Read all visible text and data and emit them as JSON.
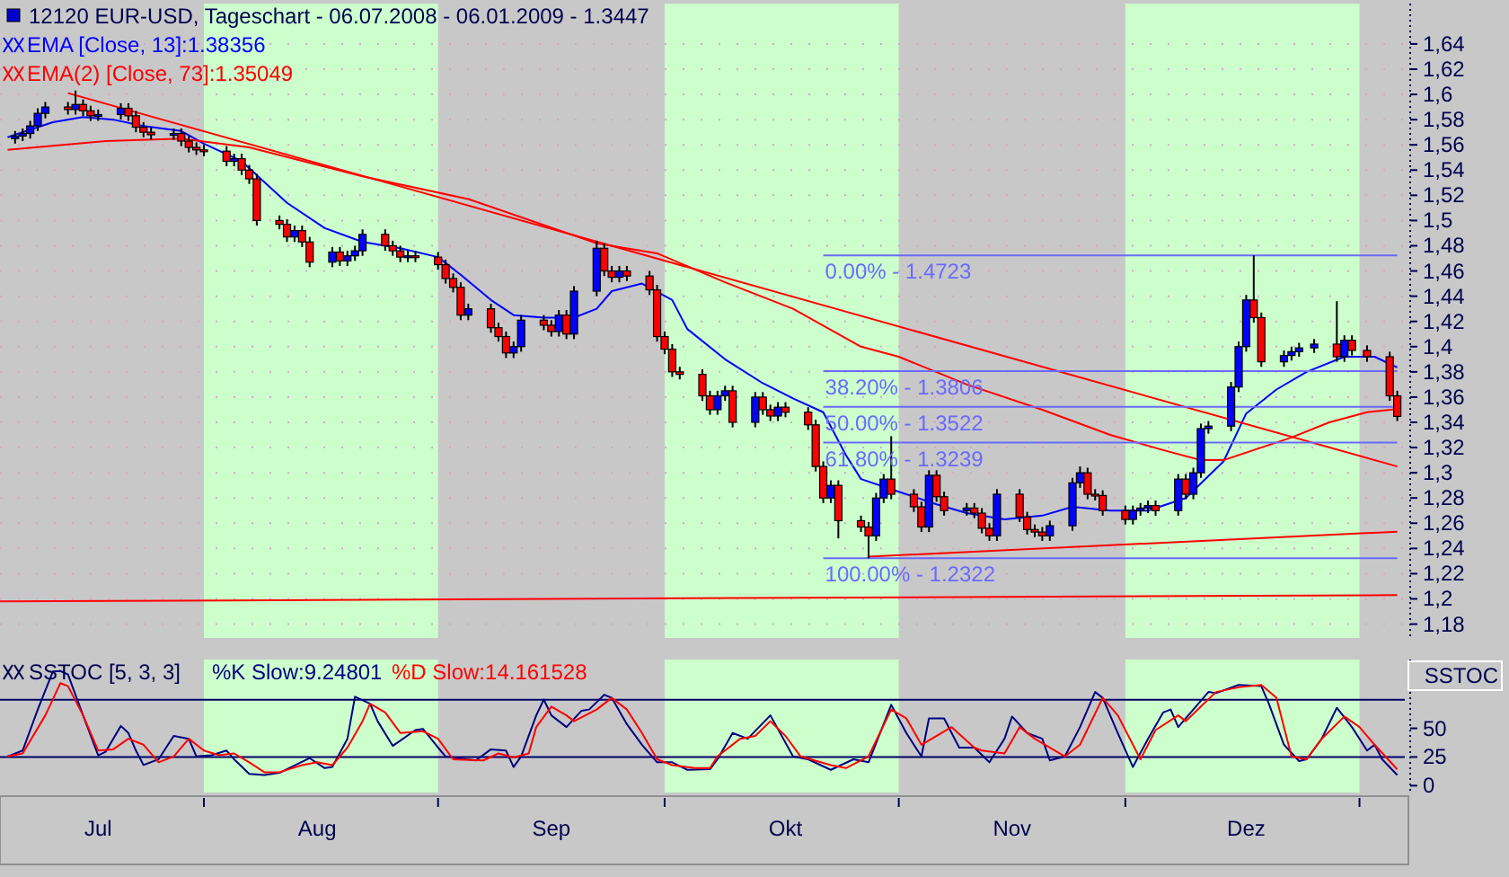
{
  "chart_data": [
    {
      "type": "candlestick",
      "title": "12120 EUR-USD, Tageschart - 06.07.2008 - 06.01.2009 - 1.3447",
      "x": [
        "2008-07-07",
        "2008-07-08",
        "2008-07-09",
        "2008-07-10",
        "2008-07-11",
        "2008-07-14",
        "2008-07-15",
        "2008-07-16",
        "2008-07-17",
        "2008-07-18",
        "2008-07-21",
        "2008-07-22",
        "2008-07-23",
        "2008-07-24",
        "2008-07-25",
        "2008-07-28",
        "2008-07-29",
        "2008-07-30",
        "2008-07-31",
        "2008-08-01",
        "2008-08-04",
        "2008-08-05",
        "2008-08-06",
        "2008-08-07",
        "2008-08-08",
        "2008-08-11",
        "2008-08-12",
        "2008-08-13",
        "2008-08-14",
        "2008-08-15",
        "2008-08-18",
        "2008-08-19",
        "2008-08-20",
        "2008-08-21",
        "2008-08-22",
        "2008-08-25",
        "2008-08-26",
        "2008-08-27",
        "2008-08-28",
        "2008-08-29",
        "2008-09-01",
        "2008-09-02",
        "2008-09-03",
        "2008-09-04",
        "2008-09-05",
        "2008-09-08",
        "2008-09-09",
        "2008-09-10",
        "2008-09-11",
        "2008-09-12",
        "2008-09-15",
        "2008-09-16",
        "2008-09-17",
        "2008-09-18",
        "2008-09-19",
        "2008-09-22",
        "2008-09-23",
        "2008-09-24",
        "2008-09-25",
        "2008-09-26",
        "2008-09-29",
        "2008-09-30",
        "2008-10-01",
        "2008-10-02",
        "2008-10-03",
        "2008-10-06",
        "2008-10-07",
        "2008-10-08",
        "2008-10-09",
        "2008-10-10",
        "2008-10-13",
        "2008-10-14",
        "2008-10-15",
        "2008-10-16",
        "2008-10-17",
        "2008-10-20",
        "2008-10-21",
        "2008-10-22",
        "2008-10-23",
        "2008-10-24",
        "2008-10-27",
        "2008-10-28",
        "2008-10-29",
        "2008-10-30",
        "2008-10-31",
        "2008-11-03",
        "2008-11-04",
        "2008-11-05",
        "2008-11-06",
        "2008-11-07",
        "2008-11-10",
        "2008-11-11",
        "2008-11-12",
        "2008-11-13",
        "2008-11-14",
        "2008-11-17",
        "2008-11-18",
        "2008-11-19",
        "2008-11-20",
        "2008-11-21",
        "2008-11-24",
        "2008-11-25",
        "2008-11-26",
        "2008-11-27",
        "2008-11-28",
        "2008-12-01",
        "2008-12-02",
        "2008-12-03",
        "2008-12-04",
        "2008-12-05",
        "2008-12-08",
        "2008-12-09",
        "2008-12-10",
        "2008-12-11",
        "2008-12-12",
        "2008-12-15",
        "2008-12-16",
        "2008-12-17",
        "2008-12-18",
        "2008-12-19",
        "2008-12-22",
        "2008-12-23",
        "2008-12-24",
        "2008-12-26",
        "2008-12-29",
        "2008-12-30",
        "2008-12-31",
        "2009-01-02",
        "2009-01-05",
        "2009-01-06"
      ],
      "ohlc": [
        [
          1.565,
          1.571,
          1.561,
          1.567
        ],
        [
          1.567,
          1.573,
          1.563,
          1.569
        ],
        [
          1.569,
          1.579,
          1.565,
          1.575
        ],
        [
          1.575,
          1.589,
          1.571,
          1.585
        ],
        [
          1.585,
          1.594,
          1.581,
          1.59
        ],
        [
          1.59,
          1.594,
          1.584,
          1.588
        ],
        [
          1.588,
          1.603,
          1.584,
          1.592
        ],
        [
          1.592,
          1.596,
          1.583,
          1.587
        ],
        [
          1.587,
          1.591,
          1.579,
          1.583
        ],
        [
          1.583,
          1.588,
          1.579,
          1.584
        ],
        [
          1.584,
          1.593,
          1.58,
          1.589
        ],
        [
          1.589,
          1.593,
          1.579,
          1.583
        ],
        [
          1.583,
          1.587,
          1.57,
          1.574
        ],
        [
          1.574,
          1.578,
          1.566,
          1.57
        ],
        [
          1.57,
          1.574,
          1.564,
          1.568
        ],
        [
          1.568,
          1.573,
          1.564,
          1.569
        ],
        [
          1.569,
          1.573,
          1.559,
          1.563
        ],
        [
          1.563,
          1.567,
          1.554,
          1.558
        ],
        [
          1.558,
          1.562,
          1.552,
          1.556
        ],
        [
          1.556,
          1.56,
          1.551,
          1.555
        ],
        [
          1.555,
          1.559,
          1.543,
          1.547
        ],
        [
          1.547,
          1.553,
          1.543,
          1.549
        ],
        [
          1.549,
          1.553,
          1.536,
          1.54
        ],
        [
          1.54,
          1.544,
          1.529,
          1.533
        ],
        [
          1.533,
          1.537,
          1.496,
          1.5
        ],
        [
          1.5,
          1.504,
          1.493,
          1.497
        ],
        [
          1.497,
          1.501,
          1.483,
          1.487
        ],
        [
          1.487,
          1.496,
          1.483,
          1.492
        ],
        [
          1.492,
          1.496,
          1.479,
          1.483
        ],
        [
          1.483,
          1.487,
          1.463,
          1.467
        ],
        [
          1.467,
          1.479,
          1.463,
          1.475
        ],
        [
          1.475,
          1.479,
          1.464,
          1.468
        ],
        [
          1.468,
          1.476,
          1.464,
          1.472
        ],
        [
          1.472,
          1.48,
          1.468,
          1.476
        ],
        [
          1.476,
          1.493,
          1.472,
          1.489
        ],
        [
          1.489,
          1.493,
          1.476,
          1.48
        ],
        [
          1.48,
          1.484,
          1.472,
          1.476
        ],
        [
          1.476,
          1.48,
          1.467,
          1.471
        ],
        [
          1.471,
          1.476,
          1.467,
          1.472
        ],
        [
          1.472,
          1.476,
          1.467,
          1.471
        ],
        [
          1.471,
          1.475,
          1.461,
          1.465
        ],
        [
          1.465,
          1.469,
          1.45,
          1.454
        ],
        [
          1.454,
          1.458,
          1.443,
          1.447
        ],
        [
          1.447,
          1.451,
          1.421,
          1.425
        ],
        [
          1.425,
          1.434,
          1.421,
          1.43
        ],
        [
          1.43,
          1.434,
          1.411,
          1.415
        ],
        [
          1.415,
          1.419,
          1.404,
          1.408
        ],
        [
          1.408,
          1.412,
          1.391,
          1.395
        ],
        [
          1.395,
          1.404,
          1.391,
          1.4
        ],
        [
          1.4,
          1.425,
          1.396,
          1.421
        ],
        [
          1.421,
          1.425,
          1.413,
          1.417
        ],
        [
          1.417,
          1.421,
          1.408,
          1.412
        ],
        [
          1.412,
          1.429,
          1.408,
          1.425
        ],
        [
          1.425,
          1.429,
          1.406,
          1.41
        ],
        [
          1.41,
          1.448,
          1.406,
          1.444
        ],
        [
          1.444,
          1.484,
          1.44,
          1.478
        ],
        [
          1.478,
          1.482,
          1.456,
          1.46
        ],
        [
          1.46,
          1.464,
          1.451,
          1.455
        ],
        [
          1.455,
          1.464,
          1.451,
          1.46
        ],
        [
          1.46,
          1.464,
          1.452,
          1.456
        ],
        [
          1.456,
          1.46,
          1.441,
          1.445
        ],
        [
          1.445,
          1.449,
          1.404,
          1.408
        ],
        [
          1.408,
          1.412,
          1.394,
          1.398
        ],
        [
          1.398,
          1.402,
          1.376,
          1.38
        ],
        [
          1.38,
          1.384,
          1.374,
          1.378
        ],
        [
          1.378,
          1.382,
          1.357,
          1.361
        ],
        [
          1.361,
          1.365,
          1.346,
          1.35
        ],
        [
          1.35,
          1.365,
          1.346,
          1.361
        ],
        [
          1.361,
          1.369,
          1.357,
          1.365
        ],
        [
          1.365,
          1.369,
          1.336,
          1.34
        ],
        [
          1.34,
          1.364,
          1.336,
          1.36
        ],
        [
          1.36,
          1.364,
          1.346,
          1.35
        ],
        [
          1.35,
          1.354,
          1.341,
          1.345
        ],
        [
          1.345,
          1.356,
          1.341,
          1.352
        ],
        [
          1.352,
          1.356,
          1.344,
          1.348
        ],
        [
          1.348,
          1.352,
          1.334,
          1.338
        ],
        [
          1.338,
          1.342,
          1.301,
          1.305
        ],
        [
          1.305,
          1.309,
          1.276,
          1.28
        ],
        [
          1.28,
          1.294,
          1.276,
          1.29
        ],
        [
          1.29,
          1.294,
          1.248,
          1.262
        ],
        [
          1.262,
          1.266,
          1.253,
          1.257
        ],
        [
          1.257,
          1.261,
          1.2322,
          1.25
        ],
        [
          1.25,
          1.284,
          1.246,
          1.28
        ],
        [
          1.28,
          1.299,
          1.276,
          1.295
        ],
        [
          1.295,
          1.329,
          1.279,
          1.283
        ],
        [
          1.283,
          1.287,
          1.269,
          1.273
        ],
        [
          1.273,
          1.277,
          1.253,
          1.257
        ],
        [
          1.257,
          1.302,
          1.253,
          1.298
        ],
        [
          1.298,
          1.302,
          1.277,
          1.281
        ],
        [
          1.281,
          1.285,
          1.266,
          1.27
        ],
        [
          1.27,
          1.276,
          1.266,
          1.272
        ],
        [
          1.272,
          1.276,
          1.264,
          1.268
        ],
        [
          1.268,
          1.272,
          1.252,
          1.256
        ],
        [
          1.256,
          1.26,
          1.246,
          1.25
        ],
        [
          1.25,
          1.287,
          1.246,
          1.283
        ],
        [
          1.283,
          1.287,
          1.261,
          1.265
        ],
        [
          1.265,
          1.269,
          1.251,
          1.255
        ],
        [
          1.255,
          1.259,
          1.249,
          1.253
        ],
        [
          1.253,
          1.257,
          1.246,
          1.25
        ],
        [
          1.25,
          1.262,
          1.246,
          1.258
        ],
        [
          1.258,
          1.296,
          1.254,
          1.292
        ],
        [
          1.292,
          1.305,
          1.288,
          1.3
        ],
        [
          1.3,
          1.304,
          1.279,
          1.283
        ],
        [
          1.283,
          1.287,
          1.278,
          1.282
        ],
        [
          1.282,
          1.286,
          1.266,
          1.27
        ],
        [
          1.27,
          1.274,
          1.259,
          1.263
        ],
        [
          1.263,
          1.274,
          1.259,
          1.27
        ],
        [
          1.27,
          1.276,
          1.266,
          1.272
        ],
        [
          1.272,
          1.278,
          1.268,
          1.274
        ],
        [
          1.274,
          1.278,
          1.266,
          1.27
        ],
        [
          1.27,
          1.299,
          1.266,
          1.295
        ],
        [
          1.295,
          1.299,
          1.279,
          1.283
        ],
        [
          1.283,
          1.304,
          1.279,
          1.3
        ],
        [
          1.3,
          1.339,
          1.296,
          1.335
        ],
        [
          1.335,
          1.341,
          1.331,
          1.337
        ],
        [
          1.337,
          1.372,
          1.333,
          1.368
        ],
        [
          1.368,
          1.404,
          1.364,
          1.4
        ],
        [
          1.4,
          1.441,
          1.396,
          1.437
        ],
        [
          1.437,
          1.4723,
          1.419,
          1.423
        ],
        [
          1.423,
          1.427,
          1.384,
          1.388
        ],
        [
          1.388,
          1.397,
          1.384,
          1.393
        ],
        [
          1.393,
          1.4,
          1.389,
          1.396
        ],
        [
          1.396,
          1.403,
          1.392,
          1.399
        ],
        [
          1.399,
          1.406,
          1.395,
          1.402
        ],
        [
          1.402,
          1.436,
          1.388,
          1.392
        ],
        [
          1.392,
          1.409,
          1.388,
          1.405
        ],
        [
          1.405,
          1.409,
          1.393,
          1.397
        ],
        [
          1.397,
          1.401,
          1.388,
          1.392
        ],
        [
          1.392,
          1.396,
          1.357,
          1.361
        ],
        [
          1.361,
          1.365,
          1.341,
          1.3447
        ]
      ],
      "series": [
        {
          "type": "line",
          "name": "EMA [Close, 13]:1.38356",
          "color": "#0000ff",
          "x": [
            "2008-07-06",
            "2008-07-12",
            "2008-07-16",
            "2008-07-20",
            "2008-07-24",
            "2008-07-29",
            "2008-08-01",
            "2008-08-06",
            "2008-08-12",
            "2008-08-17",
            "2008-08-22",
            "2008-08-27",
            "2008-09-01",
            "2008-09-04",
            "2008-09-08",
            "2008-09-11",
            "2008-09-15",
            "2008-09-19",
            "2008-09-22",
            "2008-09-24",
            "2008-09-28",
            "2008-10-02",
            "2008-10-04",
            "2008-10-09",
            "2008-10-14",
            "2008-10-18",
            "2008-10-22",
            "2008-10-25",
            "2008-10-27",
            "2008-11-01",
            "2008-11-06",
            "2008-11-10",
            "2008-11-15",
            "2008-11-20",
            "2008-11-24",
            "2008-11-29",
            "2008-12-04",
            "2008-12-09",
            "2008-12-14",
            "2008-12-17",
            "2008-12-21",
            "2008-12-25",
            "2008-12-30",
            "2009-01-03",
            "2009-01-06"
          ],
          "values": [
            1.566,
            1.578,
            1.582,
            1.58,
            1.575,
            1.571,
            1.561,
            1.547,
            1.514,
            1.494,
            1.483,
            1.478,
            1.471,
            1.457,
            1.437,
            1.425,
            1.423,
            1.423,
            1.43,
            1.444,
            1.45,
            1.437,
            1.414,
            1.39,
            1.371,
            1.359,
            1.348,
            1.314,
            1.295,
            1.285,
            1.275,
            1.268,
            1.263,
            1.266,
            1.273,
            1.27,
            1.27,
            1.28,
            1.309,
            1.347,
            1.366,
            1.38,
            1.392,
            1.392,
            1.3836
          ]
        },
        {
          "type": "line",
          "name": "EMA(2) [Close, 73]:1.35049",
          "color": "#ff0000",
          "x": [
            "2008-07-06",
            "2008-07-19",
            "2008-07-29",
            "2008-08-07",
            "2008-08-22",
            "2008-09-05",
            "2008-09-22",
            "2008-09-30",
            "2008-10-09",
            "2008-10-18",
            "2008-10-27",
            "2008-11-01",
            "2008-11-10",
            "2008-11-20",
            "2008-11-29",
            "2008-12-06",
            "2008-12-11",
            "2008-12-14",
            "2008-12-18",
            "2008-12-23",
            "2008-12-28",
            "2009-01-02",
            "2009-01-06"
          ],
          "values": [
            1.556,
            1.563,
            1.565,
            1.558,
            1.535,
            1.517,
            1.482,
            1.474,
            1.451,
            1.43,
            1.4,
            1.392,
            1.37,
            1.35,
            1.33,
            1.318,
            1.31,
            1.31,
            1.318,
            1.328,
            1.34,
            1.348,
            1.3505
          ]
        },
        {
          "type": "line",
          "color": "#ff0000",
          "x": [
            "2008-07-14",
            "2009-01-06"
          ],
          "values": [
            1.601,
            1.305
          ]
        },
        {
          "type": "line",
          "color": "#ff0000",
          "x": [
            "2008-10-28",
            "2009-01-06"
          ],
          "values": [
            1.2335,
            1.2533
          ]
        },
        {
          "type": "line",
          "color": "#ff0000",
          "x": [
            "2008-07-05",
            "2009-01-06"
          ],
          "values": [
            1.198,
            1.203
          ]
        },
        {
          "type": "line",
          "name": "0.00% - 1.4723",
          "color": "#6a6aff",
          "x": [
            "2008-10-22",
            "2009-01-06"
          ],
          "values": [
            1.4723,
            1.4723
          ]
        },
        {
          "type": "line",
          "name": "38.20% - 1.3806",
          "color": "#6a6aff",
          "x": [
            "2008-10-22",
            "2009-01-06"
          ],
          "values": [
            1.3806,
            1.3806
          ]
        },
        {
          "type": "line",
          "name": "50.00% - 1.3522",
          "color": "#6a6aff",
          "x": [
            "2008-10-22",
            "2009-01-06"
          ],
          "values": [
            1.3522,
            1.3522
          ]
        },
        {
          "type": "line",
          "name": "61.80% - 1.3239",
          "color": "#6a6aff",
          "x": [
            "2008-10-22",
            "2009-01-06"
          ],
          "values": [
            1.3239,
            1.3239
          ]
        },
        {
          "type": "line",
          "name": "100.00% - 1.2322",
          "color": "#6a6aff",
          "x": [
            "2008-10-22",
            "2009-01-06"
          ],
          "values": [
            1.2322,
            1.2322
          ]
        }
      ],
      "xlim": [
        "2008-07-05",
        "2009-01-07"
      ],
      "ylim": [
        1.169,
        1.672
      ],
      "yticks": [
        {
          "value": 1.18,
          "label": "1,18"
        },
        {
          "value": 1.2,
          "label": "1,2"
        },
        {
          "value": 1.22,
          "label": "1,22"
        },
        {
          "value": 1.24,
          "label": "1,24"
        },
        {
          "value": 1.26,
          "label": "1,26"
        },
        {
          "value": 1.28,
          "label": "1,28"
        },
        {
          "value": 1.3,
          "label": "1,3"
        },
        {
          "value": 1.32,
          "label": "1,32"
        },
        {
          "value": 1.34,
          "label": "1,34"
        },
        {
          "value": 1.36,
          "label": "1,36"
        },
        {
          "value": 1.38,
          "label": "1,38"
        },
        {
          "value": 1.4,
          "label": "1,4"
        },
        {
          "value": 1.42,
          "label": "1,42"
        },
        {
          "value": 1.44,
          "label": "1,44"
        },
        {
          "value": 1.46,
          "label": "1,46"
        },
        {
          "value": 1.48,
          "label": "1,48"
        },
        {
          "value": 1.5,
          "label": "1,5"
        },
        {
          "value": 1.52,
          "label": "1,52"
        },
        {
          "value": 1.54,
          "label": "1,54"
        },
        {
          "value": 1.56,
          "label": "1,56"
        },
        {
          "value": 1.58,
          "label": "1,58"
        },
        {
          "value": 1.6,
          "label": "1,6"
        },
        {
          "value": 1.62,
          "label": "1,62"
        },
        {
          "value": 1.64,
          "label": "1,64"
        }
      ],
      "grid": "y",
      "legend": "top left",
      "tick_labels": "y",
      "bands": [
        {
          "axis": "x",
          "from": "2008-08-01",
          "to": "2008-09-01",
          "color": "#ccffcc"
        },
        {
          "axis": "x",
          "from": "2008-10-01",
          "to": "2008-11-01",
          "color": "#ccffcc"
        },
        {
          "axis": "x",
          "from": "2008-12-01",
          "to": "2009-01-01",
          "color": "#ccffcc"
        }
      ]
    },
    {
      "type": "line",
      "title": "SSTOC [5, 3, 3]",
      "series": [
        {
          "name": "%K Slow:9.24801",
          "color": "#000080",
          "x": [
            "2008-07-06",
            "2008-07-08",
            "2008-07-10",
            "2008-07-12",
            "2008-07-13",
            "2008-07-14",
            "2008-07-16",
            "2008-07-18",
            "2008-07-19",
            "2008-07-21",
            "2008-07-22",
            "2008-07-23",
            "2008-07-24",
            "2008-07-26",
            "2008-07-28",
            "2008-07-30",
            "2008-07-31",
            "2008-08-02",
            "2008-08-04",
            "2008-08-05",
            "2008-08-07",
            "2008-08-09",
            "2008-08-11",
            "2008-08-15",
            "2008-08-17",
            "2008-08-18",
            "2008-08-20",
            "2008-08-21",
            "2008-08-23",
            "2008-08-24",
            "2008-08-26",
            "2008-08-29",
            "2008-08-30",
            "2008-09-01",
            "2008-09-02",
            "2008-09-06",
            "2008-09-08",
            "2008-09-10",
            "2008-09-11",
            "2008-09-12",
            "2008-09-14",
            "2008-09-15",
            "2008-09-16",
            "2008-09-18",
            "2008-09-20",
            "2008-09-21",
            "2008-09-23",
            "2008-09-24",
            "2008-09-26",
            "2008-09-28",
            "2008-09-30",
            "2008-10-02",
            "2008-10-04",
            "2008-10-07",
            "2008-10-08",
            "2008-10-10",
            "2008-10-12",
            "2008-10-15",
            "2008-10-18",
            "2008-10-20",
            "2008-10-23",
            "2008-10-26",
            "2008-10-28",
            "2008-10-31",
            "2008-11-02",
            "2008-11-04",
            "2008-11-05",
            "2008-11-07",
            "2008-11-09",
            "2008-11-11",
            "2008-11-13",
            "2008-11-15",
            "2008-11-16",
            "2008-11-18",
            "2008-11-20",
            "2008-11-21",
            "2008-11-23",
            "2008-11-25",
            "2008-11-27",
            "2008-11-28",
            "2008-11-30",
            "2008-12-02",
            "2008-12-04",
            "2008-12-06",
            "2008-12-07",
            "2008-12-08",
            "2008-12-10",
            "2008-12-12",
            "2008-12-13",
            "2008-12-16",
            "2008-12-19",
            "2008-12-20",
            "2008-12-22",
            "2008-12-24",
            "2008-12-25",
            "2008-12-27",
            "2008-12-29",
            "2008-12-31",
            "2009-01-02",
            "2009-01-03",
            "2009-01-04",
            "2009-01-06"
          ],
          "values": [
            25.5,
            30.6,
            66.4,
            99.6,
            100,
            97,
            61.3,
            26.5,
            29.6,
            52.1,
            45.9,
            30.6,
            18,
            23,
            43.4,
            40.9,
            25.5,
            26.5,
            30.6,
            23,
            10.2,
            9.2,
            11.2,
            24,
            15.3,
            16.3,
            40.9,
            77.6,
            71.5,
            56.2,
            34.7,
            48.5,
            49.5,
            33.2,
            25.5,
            22,
            31.7,
            30.6,
            16.3,
            25.5,
            61.3,
            75.1,
            61.3,
            51.1,
            65.4,
            66.4,
            79.2,
            76.6,
            53.6,
            35.7,
            20.4,
            20.4,
            13.8,
            14.3,
            23,
            45.9,
            40.9,
            61.3,
            25.5,
            23,
            13.8,
            23,
            20.4,
            70.5,
            45.9,
            25.5,
            58.7,
            58.7,
            33.2,
            33.2,
            20.4,
            40.9,
            60.3,
            45.9,
            40.9,
            22,
            25.5,
            51.1,
            81.7,
            76.6,
            45.9,
            16.3,
            40.9,
            63.8,
            66.4,
            51.1,
            66.4,
            81.7,
            80.7,
            87.9,
            86.8,
            71.5,
            35.7,
            21.4,
            23,
            40.9,
            67.9,
            51.1,
            30.6,
            35.7,
            23,
            9.25
          ]
        },
        {
          "name": "%D Slow:14.161528",
          "color": "#ff0000",
          "x": [
            "2008-07-06",
            "2008-07-08",
            "2008-07-11",
            "2008-07-13",
            "2008-07-14",
            "2008-07-16",
            "2008-07-18",
            "2008-07-20",
            "2008-07-22",
            "2008-07-24",
            "2008-07-26",
            "2008-07-28",
            "2008-07-30",
            "2008-08-01",
            "2008-08-03",
            "2008-08-05",
            "2008-08-07",
            "2008-08-09",
            "2008-08-11",
            "2008-08-14",
            "2008-08-16",
            "2008-08-18",
            "2008-08-20",
            "2008-08-22",
            "2008-08-23",
            "2008-08-25",
            "2008-08-27",
            "2008-08-30",
            "2008-09-01",
            "2008-09-03",
            "2008-09-07",
            "2008-09-09",
            "2008-09-11",
            "2008-09-13",
            "2008-09-14",
            "2008-09-16",
            "2008-09-18",
            "2008-09-19",
            "2008-09-22",
            "2008-09-24",
            "2008-09-26",
            "2008-09-28",
            "2008-09-30",
            "2008-10-02",
            "2008-10-05",
            "2008-10-07",
            "2008-10-08",
            "2008-10-11",
            "2008-10-13",
            "2008-10-15",
            "2008-10-17",
            "2008-10-19",
            "2008-10-23",
            "2008-10-25",
            "2008-10-28",
            "2008-10-31",
            "2008-11-02",
            "2008-11-04",
            "2008-11-08",
            "2008-11-11",
            "2008-11-12",
            "2008-11-15",
            "2008-11-17",
            "2008-11-19",
            "2008-11-23",
            "2008-11-25",
            "2008-11-28",
            "2008-11-30",
            "2008-12-03",
            "2008-12-05",
            "2008-12-08",
            "2008-12-09",
            "2008-12-11",
            "2008-12-13",
            "2008-12-16",
            "2008-12-19",
            "2008-12-21",
            "2008-12-23",
            "2008-12-25",
            "2008-12-27",
            "2008-12-30",
            "2009-01-01",
            "2009-01-03",
            "2009-01-06"
          ],
          "values": [
            25.5,
            28.1,
            61.3,
            89.4,
            86.8,
            61.3,
            30.6,
            31.7,
            40.9,
            35.7,
            20.4,
            25.5,
            40.9,
            30.6,
            26.5,
            28.1,
            20.4,
            11.7,
            11.7,
            17.9,
            20.4,
            17.9,
            33.2,
            56.2,
            71.5,
            63.8,
            46,
            47.5,
            40.9,
            23,
            22,
            28.1,
            24.5,
            28.1,
            51.1,
            69,
            61.3,
            56.2,
            66.4,
            76.6,
            66.4,
            45.9,
            23,
            17.9,
            15.3,
            15.3,
            25.5,
            40.9,
            43.4,
            56.2,
            43.4,
            25.5,
            17.9,
            15.3,
            25.5,
            66.4,
            58.7,
            35.7,
            51.1,
            33.2,
            30.6,
            28.1,
            51.1,
            40.9,
            25.5,
            35.7,
            76.6,
            61.3,
            23,
            48.5,
            61.3,
            56.2,
            69,
            81.7,
            85.8,
            87.9,
            76.6,
            25.5,
            23,
            40.9,
            60.3,
            51.1,
            35.7,
            14.16
          ]
        }
      ],
      "xlim": [
        "2008-07-05",
        "2009-01-07"
      ],
      "xticks": [
        {
          "value": "2008-07-18",
          "label": "Jul"
        },
        {
          "value": "2008-08-01",
          "label": null
        },
        {
          "value": "2008-08-16",
          "label": "Aug"
        },
        {
          "value": "2008-09-01",
          "label": null
        },
        {
          "value": "2008-09-16",
          "label": "Sep"
        },
        {
          "value": "2008-10-01",
          "label": null
        },
        {
          "value": "2008-10-17",
          "label": "Okt"
        },
        {
          "value": "2008-11-01",
          "label": null
        },
        {
          "value": "2008-11-16",
          "label": "Nov"
        },
        {
          "value": "2008-12-01",
          "label": null
        },
        {
          "value": "2008-12-17",
          "label": "Dez"
        },
        {
          "value": "2009-01-01",
          "label": null
        }
      ],
      "ylim": [
        -6,
        110
      ],
      "yticks": [
        0,
        25,
        50
      ],
      "ref_lines": [
        {
          "axis": "y",
          "value": 25,
          "color": "#000066"
        },
        {
          "axis": "y",
          "value": 75,
          "color": "#000066"
        }
      ],
      "bands": [
        {
          "axis": "x",
          "from": "2008-08-01",
          "to": "2008-09-01",
          "color": "#ccffcc"
        },
        {
          "axis": "x",
          "from": "2008-10-01",
          "to": "2008-11-01",
          "color": "#ccffcc"
        },
        {
          "axis": "x",
          "from": "2008-12-01",
          "to": "2009-01-01",
          "color": "#ccffcc"
        }
      ],
      "legend": "top left",
      "annotations": [
        "SSTOC"
      ]
    }
  ]
}
